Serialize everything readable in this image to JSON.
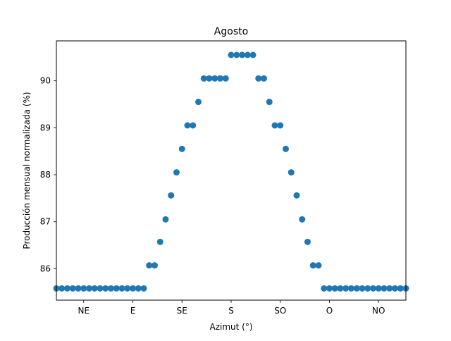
{
  "chart_data": {
    "type": "scatter",
    "title": "Agosto",
    "xlabel": "Azimut (°)",
    "ylabel": "Producción mensual normalizada (%)",
    "x_ticks": [
      {
        "value": -135,
        "label": "NE"
      },
      {
        "value": -90,
        "label": "E"
      },
      {
        "value": -45,
        "label": "SE"
      },
      {
        "value": 0,
        "label": "S"
      },
      {
        "value": 45,
        "label": "SO"
      },
      {
        "value": 90,
        "label": "O"
      },
      {
        "value": 135,
        "label": "NO"
      }
    ],
    "y_ticks": [
      86,
      87,
      88,
      89,
      90
    ],
    "xlim": [
      -160,
      160
    ],
    "ylim": [
      85.33,
      90.85
    ],
    "grid": false,
    "marker_color": "#1f77b4",
    "series": [
      {
        "x": [
          -160,
          -155,
          -150,
          -145,
          -140,
          -135,
          -130,
          -125,
          -120,
          -115,
          -110,
          -105,
          -100,
          -95,
          -90,
          -85,
          -80,
          -75,
          -70,
          -65,
          -60,
          -55,
          -50,
          -45,
          -40,
          -35,
          -30,
          -25,
          -20,
          -15,
          -10,
          -5,
          0,
          5,
          10,
          15,
          20,
          25,
          30,
          35,
          40,
          45,
          50,
          55,
          60,
          65,
          70,
          75,
          80,
          85,
          90,
          95,
          100,
          105,
          110,
          115,
          120,
          125,
          130,
          135,
          140,
          145,
          150,
          155,
          160
        ],
        "y": [
          85.58,
          85.58,
          85.58,
          85.58,
          85.58,
          85.58,
          85.58,
          85.58,
          85.58,
          85.58,
          85.58,
          85.58,
          85.58,
          85.58,
          85.58,
          85.58,
          85.58,
          86.07,
          86.07,
          86.57,
          87.05,
          87.56,
          88.05,
          88.55,
          89.05,
          89.05,
          89.55,
          90.05,
          90.05,
          90.05,
          90.05,
          90.05,
          90.55,
          90.55,
          90.55,
          90.55,
          90.55,
          90.05,
          90.05,
          89.55,
          89.05,
          89.05,
          88.55,
          88.05,
          87.56,
          87.05,
          86.57,
          86.07,
          86.07,
          85.58,
          85.58,
          85.58,
          85.58,
          85.58,
          85.58,
          85.58,
          85.58,
          85.58,
          85.58,
          85.58,
          85.58,
          85.58,
          85.58,
          85.58,
          85.58
        ]
      }
    ]
  }
}
